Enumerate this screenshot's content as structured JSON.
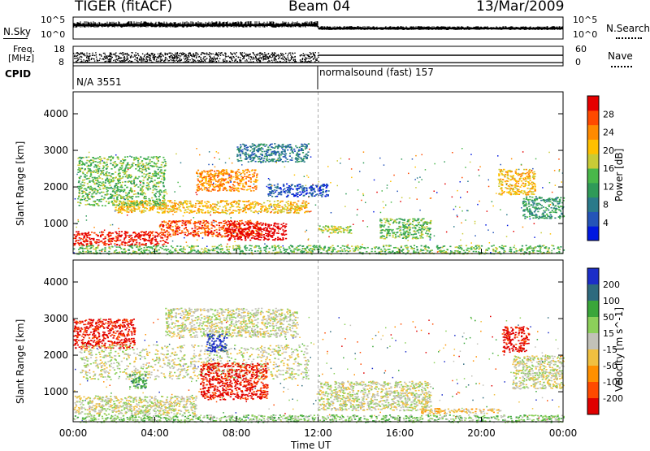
{
  "header": {
    "title": "TIGER (fitACF)",
    "beam": "Beam 04",
    "date": "13/Mar/2009"
  },
  "nsky_panel": {
    "left_label": "N.Sky",
    "left_ticks": [
      "10^5",
      "10^0"
    ],
    "right_label": "N.Search",
    "right_ticks": [
      "10^5",
      "10^0"
    ]
  },
  "freq_panel": {
    "left_label_top": "Freq.",
    "left_label_bottom": "[MHz]",
    "left_ticks": [
      "18",
      "8"
    ],
    "right_label": "Nave",
    "right_ticks": [
      "60",
      "0"
    ]
  },
  "cpid_panel": {
    "label": "CPID",
    "segments": [
      {
        "text": "N/A 3551",
        "start_hour": 0
      },
      {
        "text": "normalsound (fast) 157",
        "start_hour": 12
      }
    ]
  },
  "chart_data": [
    {
      "type": "heatmap",
      "title": "",
      "ylabel": "Slant Range [km]",
      "xlabel": "",
      "x_range_hours": [
        0,
        24
      ],
      "ylim": [
        180,
        4600
      ],
      "yticks": [
        "1000",
        "2000",
        "3000",
        "4000"
      ],
      "colorbar": {
        "label": "Power [dB]",
        "ticks": [
          "4",
          "8",
          "12",
          "16",
          "20",
          "24",
          "28"
        ],
        "colors": [
          "#0018e0",
          "#2454b8",
          "#2a7a8a",
          "#2f9a58",
          "#49b84a",
          "#c9cb36",
          "#ffc000",
          "#ff8a00",
          "#ff4a00",
          "#e60000"
        ]
      },
      "regions": [
        {
          "h0": 0.0,
          "h1": 4.6,
          "r0": 420,
          "r1": 800,
          "level": 9
        },
        {
          "h0": 4.2,
          "h1": 9.2,
          "r0": 650,
          "r1": 1100,
          "level": 8
        },
        {
          "h0": 7.5,
          "h1": 10.4,
          "r0": 560,
          "r1": 1030,
          "level": 10
        },
        {
          "h0": 2.0,
          "h1": 11.5,
          "r0": 1300,
          "r1": 1650,
          "level": 6
        },
        {
          "h0": 6.0,
          "h1": 9.0,
          "r0": 1900,
          "r1": 2500,
          "level": 7
        },
        {
          "h0": 0.2,
          "h1": 4.5,
          "r0": 1500,
          "r1": 2850,
          "level": 4
        },
        {
          "h0": 8.0,
          "h1": 11.5,
          "r0": 2700,
          "r1": 3200,
          "level": 2
        },
        {
          "h0": 9.5,
          "h1": 12.5,
          "r0": 1750,
          "r1": 2100,
          "level": 1
        },
        {
          "h0": 12.0,
          "h1": 13.6,
          "r0": 750,
          "r1": 950,
          "level": 5
        },
        {
          "h0": 15.0,
          "h1": 17.5,
          "r0": 600,
          "r1": 1150,
          "level": 4
        },
        {
          "h0": 20.8,
          "h1": 22.6,
          "r0": 1800,
          "r1": 2500,
          "level": 6
        },
        {
          "h0": 22.0,
          "h1": 24.0,
          "r0": 1150,
          "r1": 1750,
          "level": 3
        },
        {
          "h0": 0.0,
          "h1": 24.0,
          "r0": 180,
          "r1": 420,
          "level": 4
        }
      ]
    },
    {
      "type": "heatmap",
      "title": "",
      "ylabel": "Slant Range [km]",
      "xlabel": "Time UT",
      "x_range_hours": [
        0,
        24
      ],
      "xticks": [
        "00:00",
        "04:00",
        "08:00",
        "12:00",
        "16:00",
        "20:00",
        "00:00"
      ],
      "ylim": [
        180,
        4600
      ],
      "yticks": [
        "1000",
        "2000",
        "3000",
        "4000"
      ],
      "colorbar": {
        "label": "Velocity [m s^-1]",
        "ticks": [
          "200",
          "100",
          "50",
          "15",
          "-15",
          "-50",
          "-100",
          "-200"
        ],
        "colors": [
          "#1c2ec8",
          "#2e6a7e",
          "#3aa63a",
          "#8cd05a",
          "#c2c2b8",
          "#f0c040",
          "#ff9000",
          "#ff4a00",
          "#e00000"
        ]
      },
      "regions": [
        {
          "h0": 0.0,
          "h1": 3.0,
          "r0": 2200,
          "r1": 3000,
          "level": 8
        },
        {
          "h0": 4.5,
          "h1": 11.0,
          "r0": 2500,
          "r1": 3300,
          "level": 4
        },
        {
          "h0": 0.3,
          "h1": 11.5,
          "r0": 1350,
          "r1": 2300,
          "level": 4
        },
        {
          "h0": 2.7,
          "h1": 3.6,
          "r0": 1100,
          "r1": 1500,
          "level": 2
        },
        {
          "h0": 6.2,
          "h1": 9.5,
          "r0": 800,
          "r1": 1800,
          "level": 8
        },
        {
          "h0": 6.5,
          "h1": 7.5,
          "r0": 2100,
          "r1": 2600,
          "level": 0
        },
        {
          "h0": 0.0,
          "h1": 6.0,
          "r0": 400,
          "r1": 900,
          "level": 4
        },
        {
          "h0": 12.0,
          "h1": 17.5,
          "r0": 500,
          "r1": 1300,
          "level": 4
        },
        {
          "h0": 17.0,
          "h1": 21.0,
          "r0": 420,
          "r1": 560,
          "level": 5
        },
        {
          "h0": 21.0,
          "h1": 22.3,
          "r0": 2100,
          "r1": 2800,
          "level": 8
        },
        {
          "h0": 21.5,
          "h1": 24.0,
          "r0": 1100,
          "r1": 2000,
          "level": 4
        },
        {
          "h0": 0.0,
          "h1": 24.0,
          "r0": 180,
          "r1": 380,
          "level": 3
        }
      ]
    }
  ]
}
